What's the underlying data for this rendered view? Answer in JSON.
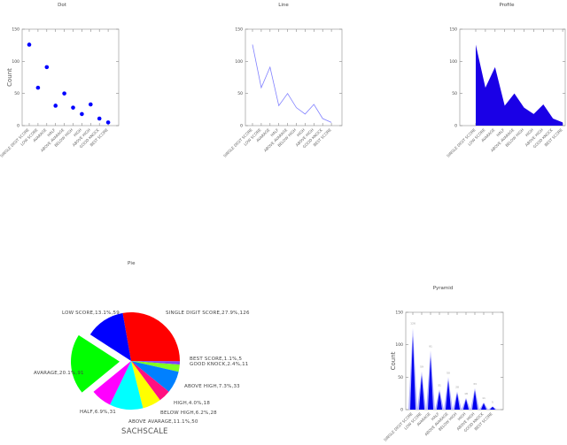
{
  "chart_data": [
    {
      "type": "scatter",
      "title": "Dot",
      "ylabel": "Count",
      "ylim": [
        0,
        150
      ],
      "yticks": [
        0,
        50,
        100,
        150
      ],
      "categories": [
        "SINGLE DIGIT SCORE",
        "LOW SCORE",
        "AVARAGE",
        "HALF",
        "ABOVE AVARAGE",
        "BELOW HIGH",
        "HIGH",
        "ABOVE HIGH",
        "GOOD KNOCK",
        "BEST SCORE"
      ],
      "values": [
        126,
        59,
        91,
        31,
        50,
        28,
        18,
        33,
        11,
        5
      ],
      "color": "#0000ff"
    },
    {
      "type": "line",
      "title": "Line",
      "ylabel": "",
      "ylim": [
        0,
        150
      ],
      "yticks": [
        0,
        50,
        100,
        150
      ],
      "categories": [
        "SINGLE DIGIT SCORE",
        "LOW SCORE",
        "AVARAGE",
        "HALF",
        "ABOVE AVARAGE",
        "BELOW HIGH",
        "HIGH",
        "ABOVE HIGH",
        "GOOD KNOCK",
        "BEST SCORE"
      ],
      "values": [
        126,
        59,
        91,
        31,
        50,
        28,
        18,
        33,
        11,
        5
      ],
      "color": "#8080ff"
    },
    {
      "type": "area",
      "title": "Profile",
      "ylabel": "",
      "ylim": [
        0,
        150
      ],
      "yticks": [
        0,
        50,
        100,
        150
      ],
      "categories": [
        "SINGLE DIGIT SCORE",
        "LOW SCORE",
        "AVARAGE",
        "HALF",
        "ABOVE AVARAGE",
        "BELOW HIGH",
        "HIGH",
        "ABOVE HIGH",
        "GOOD KNOCK",
        "BEST SCORE"
      ],
      "values": [
        126,
        59,
        91,
        31,
        50,
        28,
        18,
        33,
        11,
        5
      ],
      "color": "#1a00e6"
    },
    {
      "type": "pie",
      "title": "Pie",
      "xlabel": "SACHSCALE",
      "slices": [
        {
          "label": "SINGLE DIGIT SCORE,27.9%,126",
          "name": "SINGLE DIGIT SCORE",
          "value": 126,
          "percent": 27.9,
          "color": "#ff0000"
        },
        {
          "label": "BEST SCORE,1.1%,5",
          "name": "BEST SCORE",
          "value": 5,
          "percent": 1.1,
          "color": "#8040ff"
        },
        {
          "label": "GOOD KNOCK,2.4%,11",
          "name": "GOOD KNOCK",
          "value": 11,
          "percent": 2.4,
          "color": "#80ff20"
        },
        {
          "label": "ABOVE HIGH,7.3%,33",
          "name": "ABOVE HIGH",
          "value": 33,
          "percent": 7.3,
          "color": "#0080ff"
        },
        {
          "label": "HIGH,4.0%,18",
          "name": "HIGH",
          "value": 18,
          "percent": 4.0,
          "color": "#ff1080"
        },
        {
          "label": "BELOW HIGH,6.2%,28",
          "name": "BELOW HIGH",
          "value": 28,
          "percent": 6.2,
          "color": "#ffff00"
        },
        {
          "label": "ABOVE AVARAGE,11.1%,50",
          "name": "ABOVE AVARAGE",
          "value": 50,
          "percent": 11.1,
          "color": "#00ffff"
        },
        {
          "label": "HALF,6.9%,31",
          "name": "HALF",
          "value": 31,
          "percent": 6.9,
          "color": "#ff00ff"
        },
        {
          "label": "AVARAGE,20.1%,91",
          "name": "AVARAGE",
          "value": 91,
          "percent": 20.1,
          "color": "#00ff00",
          "exploded": true
        },
        {
          "label": "LOW SCORE,13.1%,59",
          "name": "LOW SCORE",
          "value": 59,
          "percent": 13.1,
          "color": "#0000ff"
        }
      ]
    },
    {
      "type": "pyramid",
      "title": "Pyramid",
      "ylabel": "Count",
      "ylim": [
        0,
        150
      ],
      "yticks": [
        0,
        50,
        100,
        150
      ],
      "categories": [
        "SINGLE DIGIT SCORE",
        "LOW SCORE",
        "AVARAGE",
        "HALF",
        "ABOVE AVARAGE",
        "BELOW HIGH",
        "HIGH",
        "ABOVE HIGH",
        "GOOD KNOCK",
        "BEST SCORE"
      ],
      "values": [
        126,
        59,
        91,
        31,
        50,
        28,
        18,
        33,
        11,
        5
      ],
      "color": "#0000ee"
    }
  ]
}
